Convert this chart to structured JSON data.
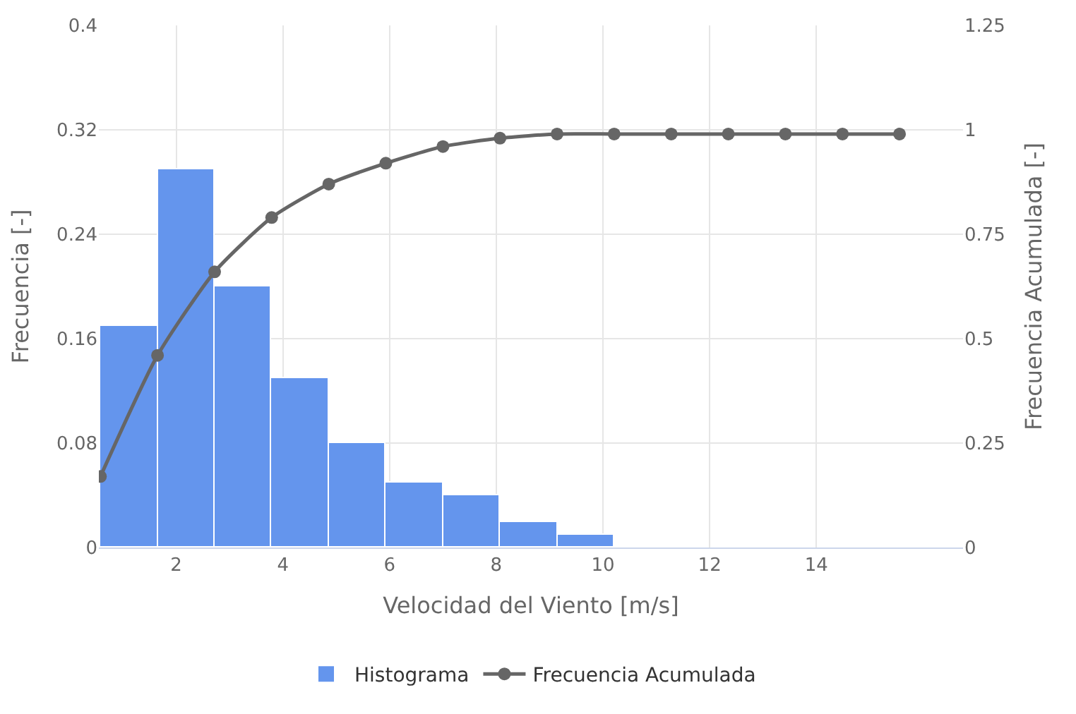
{
  "chart_data": {
    "type": "histogram",
    "xlabel": "Velocidad del Viento [m/s]",
    "ylabel": "Frecuencia [-]",
    "y2label": "Frecuencia Acumulada [-]",
    "bins": [
      0.58,
      1.65,
      2.72,
      3.79,
      4.86,
      5.93,
      7.0,
      8.07,
      9.14,
      10.21
    ],
    "series": [
      {
        "name": "Histograma",
        "color": "#6495ed",
        "values": [
          0.17,
          0.29,
          0.2,
          0.13,
          0.08,
          0.05,
          0.04,
          0.02,
          0.01
        ]
      },
      {
        "name": "Frecuencia Acumulada",
        "type": "line",
        "axis": "y2",
        "color": "#666666",
        "x": [
          0.58,
          1.65,
          2.72,
          3.79,
          4.86,
          5.93,
          7.0,
          8.07,
          9.14,
          10.21,
          11.28,
          12.35,
          13.42,
          14.49,
          15.56
        ],
        "values": [
          0.17,
          0.46,
          0.66,
          0.79,
          0.87,
          0.92,
          0.96,
          0.98,
          0.99,
          0.99,
          0.99,
          0.99,
          0.99,
          0.99,
          0.99
        ]
      }
    ],
    "xlim": [
      0.55,
      16.75
    ],
    "xticks": [
      2,
      4,
      6,
      8,
      10,
      12,
      14
    ],
    "ylim": [
      0,
      0.4
    ],
    "yticks": [
      0,
      0.08,
      0.16,
      0.24,
      0.32,
      0.4
    ],
    "y2lim": [
      0,
      1.25
    ],
    "y2ticks": [
      0,
      0.25,
      0.5,
      0.75,
      1,
      1.25
    ],
    "grid": true,
    "legend": "bottom",
    "marker": "circle",
    "line_style": "solid"
  }
}
